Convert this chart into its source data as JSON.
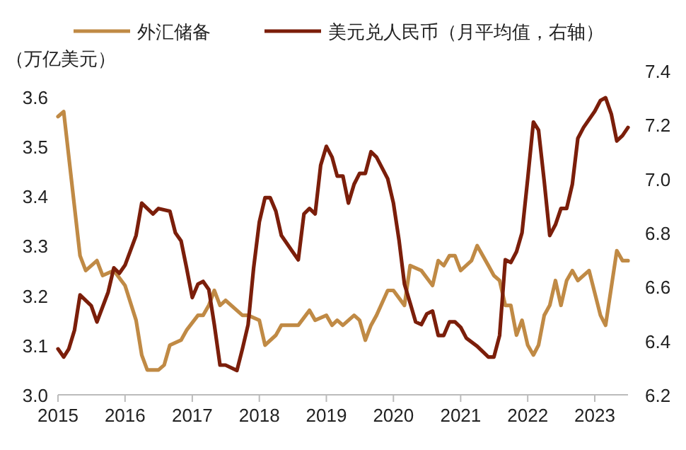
{
  "chart_data": {
    "type": "line",
    "ylabel": "（万亿美元）",
    "legend": "top",
    "grid": false,
    "xlim": [
      "2015-01",
      "2023-07"
    ],
    "xticks": [
      {
        "value": "2015-01",
        "label": "2015"
      },
      {
        "value": "2016-01",
        "label": "2016"
      },
      {
        "value": "2017-01",
        "label": "2017"
      },
      {
        "value": "2018-01",
        "label": "2018"
      },
      {
        "value": "2019-01",
        "label": "2019"
      },
      {
        "value": "2020-01",
        "label": "2020"
      },
      {
        "value": "2021-01",
        "label": "2021"
      },
      {
        "value": "2022-01",
        "label": "2022"
      },
      {
        "value": "2023-01",
        "label": "2023"
      }
    ],
    "ylim": [
      3.0,
      3.6
    ],
    "yticks": [
      {
        "value": 3.0,
        "label": "3.0"
      },
      3.1,
      3.2,
      3.3,
      3.4,
      3.5,
      3.6
    ],
    "y2lim": [
      6.2,
      7.4
    ],
    "y2ticks": [
      6.2,
      6.4,
      6.6,
      6.8,
      {
        "value": 7.0,
        "label": "7.0"
      },
      7.2,
      7.4
    ],
    "series": [
      {
        "name": "外汇储备",
        "color": "#c08a45",
        "x": [
          "2015-01",
          "2015-02",
          "2015-05",
          "2015-06",
          "2015-08",
          "2015-09",
          "2015-11",
          "2016-01",
          "2016-03",
          "2016-04",
          "2016-05",
          "2016-07",
          "2016-08",
          "2016-09",
          "2016-11",
          "2016-12",
          "2017-02",
          "2017-03",
          "2017-04",
          "2017-05",
          "2017-06",
          "2017-07",
          "2017-10",
          "2017-11",
          "2018-01",
          "2018-02",
          "2018-04",
          "2018-05",
          "2018-07",
          "2018-08",
          "2018-10",
          "2018-11",
          "2019-01",
          "2019-02",
          "2019-03",
          "2019-04",
          "2019-06",
          "2019-07",
          "2019-08",
          "2019-09",
          "2019-10",
          "2019-12",
          "2020-01",
          "2020-03",
          "2020-04",
          "2020-06",
          "2020-08",
          "2020-09",
          "2020-10",
          "2020-11",
          "2020-12",
          "2021-01",
          "2021-03",
          "2021-04",
          "2021-06",
          "2021-07",
          "2021-08",
          "2021-09",
          "2021-10",
          "2021-11",
          "2021-12",
          "2022-01",
          "2022-02",
          "2022-03",
          "2022-04",
          "2022-05",
          "2022-06",
          "2022-07",
          "2022-08",
          "2022-09",
          "2022-10",
          "2022-12",
          "2023-02",
          "2023-03",
          "2023-05",
          "2023-06",
          "2023-07"
        ],
        "values": [
          3.56,
          3.57,
          3.28,
          3.25,
          3.27,
          3.24,
          3.25,
          3.22,
          3.15,
          3.08,
          3.05,
          3.05,
          3.06,
          3.1,
          3.11,
          3.13,
          3.16,
          3.16,
          3.18,
          3.21,
          3.18,
          3.19,
          3.16,
          3.16,
          3.15,
          3.1,
          3.12,
          3.14,
          3.14,
          3.14,
          3.17,
          3.15,
          3.16,
          3.14,
          3.15,
          3.14,
          3.16,
          3.15,
          3.11,
          3.14,
          3.16,
          3.21,
          3.21,
          3.18,
          3.26,
          3.25,
          3.22,
          3.27,
          3.26,
          3.28,
          3.28,
          3.25,
          3.27,
          3.3,
          3.26,
          3.24,
          3.23,
          3.18,
          3.18,
          3.12,
          3.15,
          3.1,
          3.08,
          3.1,
          3.16,
          3.18,
          3.23,
          3.18,
          3.23,
          3.25,
          3.23,
          3.25,
          3.16,
          3.14,
          3.29,
          3.27,
          3.27
        ]
      },
      {
        "name": "美元兑人民币（月平均值，右轴）",
        "color": "#7b1e0a",
        "axis": "y2",
        "x": [
          "2015-01",
          "2015-02",
          "2015-03",
          "2015-04",
          "2015-05",
          "2015-07",
          "2015-08",
          "2015-10",
          "2015-11",
          "2015-12",
          "2016-01",
          "2016-03",
          "2016-04",
          "2016-06",
          "2016-07",
          "2016-09",
          "2016-10",
          "2016-11",
          "2016-12",
          "2017-01",
          "2017-02",
          "2017-03",
          "2017-04",
          "2017-05",
          "2017-06",
          "2017-07",
          "2017-09",
          "2017-10",
          "2017-11",
          "2017-12",
          "2018-01",
          "2018-02",
          "2018-03",
          "2018-04",
          "2018-05",
          "2018-07",
          "2018-08",
          "2018-09",
          "2018-10",
          "2018-11",
          "2018-12",
          "2019-01",
          "2019-02",
          "2019-03",
          "2019-04",
          "2019-05",
          "2019-06",
          "2019-07",
          "2019-08",
          "2019-09",
          "2019-10",
          "2019-12",
          "2020-01",
          "2020-02",
          "2020-03",
          "2020-04",
          "2020-05",
          "2020-06",
          "2020-07",
          "2020-08",
          "2020-09",
          "2020-10",
          "2020-11",
          "2020-12",
          "2021-01",
          "2021-02",
          "2021-04",
          "2021-05",
          "2021-06",
          "2021-07",
          "2021-08",
          "2021-09",
          "2021-10",
          "2021-11",
          "2021-12",
          "2022-01",
          "2022-02",
          "2022-03",
          "2022-04",
          "2022-05",
          "2022-06",
          "2022-07",
          "2022-08",
          "2022-09",
          "2022-10",
          "2022-11",
          "2023-01",
          "2023-02",
          "2023-03",
          "2023-04",
          "2023-05",
          "2023-06",
          "2023-07"
        ],
        "values": [
          6.37,
          6.34,
          6.37,
          6.44,
          6.57,
          6.53,
          6.47,
          6.58,
          6.67,
          6.65,
          6.68,
          6.79,
          6.91,
          6.87,
          6.89,
          6.88,
          6.8,
          6.77,
          6.67,
          6.56,
          6.61,
          6.62,
          6.59,
          6.46,
          6.31,
          6.31,
          6.29,
          6.37,
          6.46,
          6.67,
          6.84,
          6.93,
          6.93,
          6.88,
          6.79,
          6.73,
          6.7,
          6.87,
          6.89,
          6.87,
          7.05,
          7.12,
          7.08,
          7.01,
          7.01,
          6.91,
          6.98,
          7.02,
          7.02,
          7.1,
          7.08,
          7.0,
          6.91,
          6.77,
          6.61,
          6.54,
          6.47,
          6.46,
          6.5,
          6.51,
          6.42,
          6.42,
          6.47,
          6.47,
          6.45,
          6.41,
          6.38,
          6.36,
          6.34,
          6.34,
          6.42,
          6.7,
          6.69,
          6.73,
          6.8,
          7.0,
          7.21,
          7.18,
          6.99,
          6.79,
          6.83,
          6.89,
          6.89,
          6.98,
          7.15,
          7.19,
          7.25,
          7.29,
          7.3,
          7.24,
          7.14,
          7.16,
          7.19
        ]
      }
    ]
  }
}
